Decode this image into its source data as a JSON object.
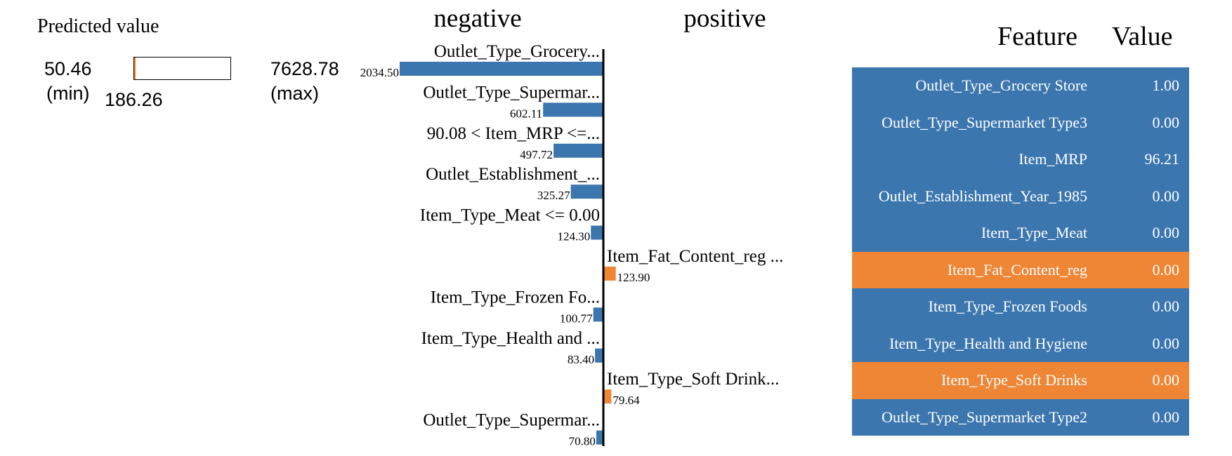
{
  "colors": {
    "negative": "#3b76af",
    "positive": "#ef8636",
    "axis": "#000000"
  },
  "predicted": {
    "title": "Predicted value",
    "min_value": "50.46",
    "min_label": "(min)",
    "max_value": "7628.78",
    "max_label": "(max)",
    "value": "186.26",
    "fraction": 0.018
  },
  "legend": {
    "negative": "negative",
    "positive": "positive"
  },
  "chart_data": {
    "type": "bar",
    "orientation": "horizontal",
    "categories": [
      "Outlet_Type_Grocery...",
      "Outlet_Type_Supermar...",
      "90.08 < Item_MRP <=...",
      "Outlet_Establishment_...",
      "Item_Type_Meat <= 0.00",
      "Item_Fat_Content_reg ...",
      "Item_Type_Frozen Fo...",
      "Item_Type_Health and ...",
      "Item_Type_Soft Drink...",
      "Outlet_Type_Supermar..."
    ],
    "values": [
      -2034.5,
      -602.11,
      -497.72,
      -325.27,
      -124.3,
      123.9,
      -100.77,
      -83.4,
      79.64,
      -70.8
    ],
    "value_labels": [
      "2034.50",
      "602.11",
      "497.72",
      "325.27",
      "124.30",
      "123.90",
      "100.77",
      "83.40",
      "79.64",
      "70.80"
    ],
    "sign_labels": [
      "negative",
      "positive"
    ],
    "xlim": [
      -2034.5,
      2034.5
    ]
  },
  "table": {
    "headers": [
      "Feature",
      "Value"
    ],
    "rows": [
      {
        "feature": "Outlet_Type_Grocery Store",
        "value": "1.00",
        "sign": "negative"
      },
      {
        "feature": "Outlet_Type_Supermarket Type3",
        "value": "0.00",
        "sign": "negative"
      },
      {
        "feature": "Item_MRP",
        "value": "96.21",
        "sign": "negative"
      },
      {
        "feature": "Outlet_Establishment_Year_1985",
        "value": "0.00",
        "sign": "negative"
      },
      {
        "feature": "Item_Type_Meat",
        "value": "0.00",
        "sign": "negative"
      },
      {
        "feature": "Item_Fat_Content_reg",
        "value": "0.00",
        "sign": "positive"
      },
      {
        "feature": "Item_Type_Frozen Foods",
        "value": "0.00",
        "sign": "negative"
      },
      {
        "feature": "Item_Type_Health and Hygiene",
        "value": "0.00",
        "sign": "negative"
      },
      {
        "feature": "Item_Type_Soft Drinks",
        "value": "0.00",
        "sign": "positive"
      },
      {
        "feature": "Outlet_Type_Supermarket Type2",
        "value": "0.00",
        "sign": "negative"
      }
    ]
  }
}
